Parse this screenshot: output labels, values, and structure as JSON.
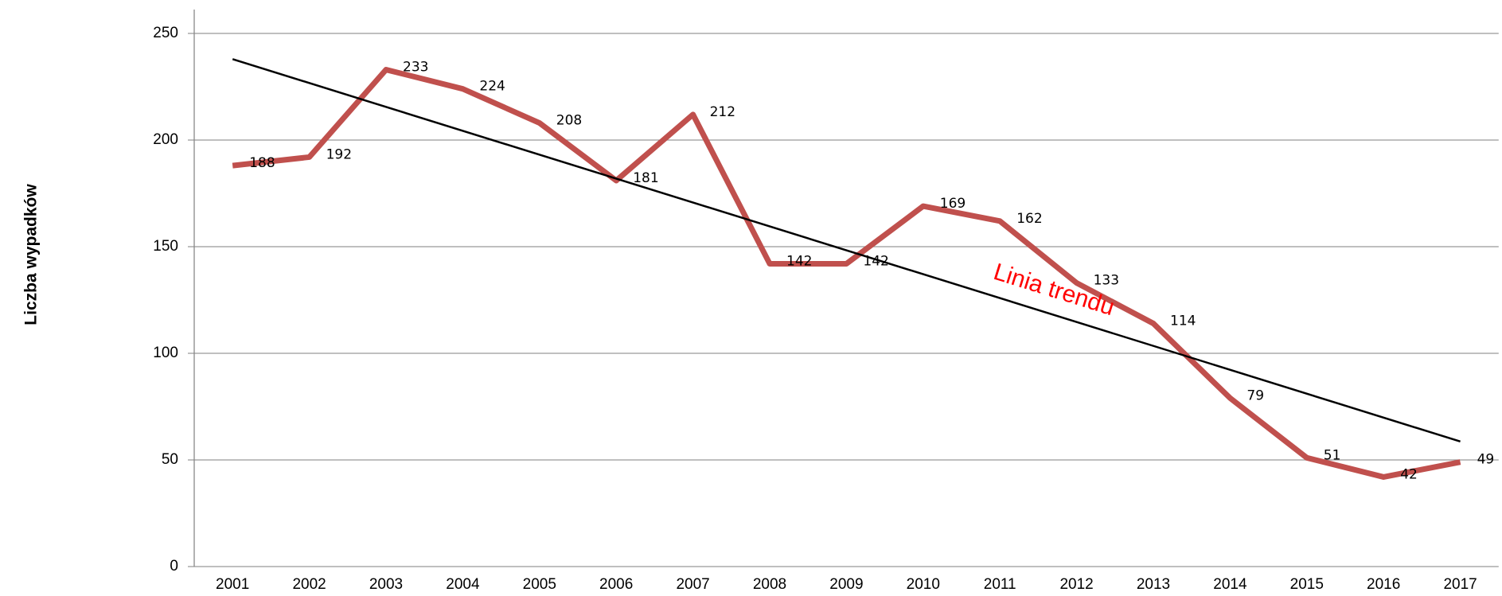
{
  "chart_data": {
    "type": "line",
    "y_label": "Liczba wypadków",
    "annotation": "Linia trendu",
    "categories": [
      "2001",
      "2002",
      "2003",
      "2004",
      "2005",
      "2006",
      "2007",
      "2008",
      "2009",
      "2010",
      "2011",
      "2012",
      "2013",
      "2014",
      "2015",
      "2016",
      "2017"
    ],
    "series": [
      {
        "color": "#c0504d",
        "values": [
          188,
          192,
          233,
          224,
          208,
          181,
          212,
          142,
          142,
          169,
          162,
          133,
          114,
          79,
          51,
          42,
          49
        ]
      }
    ],
    "trendline": {
      "color": "#000000",
      "annotation_color": "#ff0000"
    },
    "ylim": [
      0,
      250
    ],
    "yticks": [
      0,
      50,
      100,
      150,
      200,
      250
    ],
    "grid": true
  }
}
